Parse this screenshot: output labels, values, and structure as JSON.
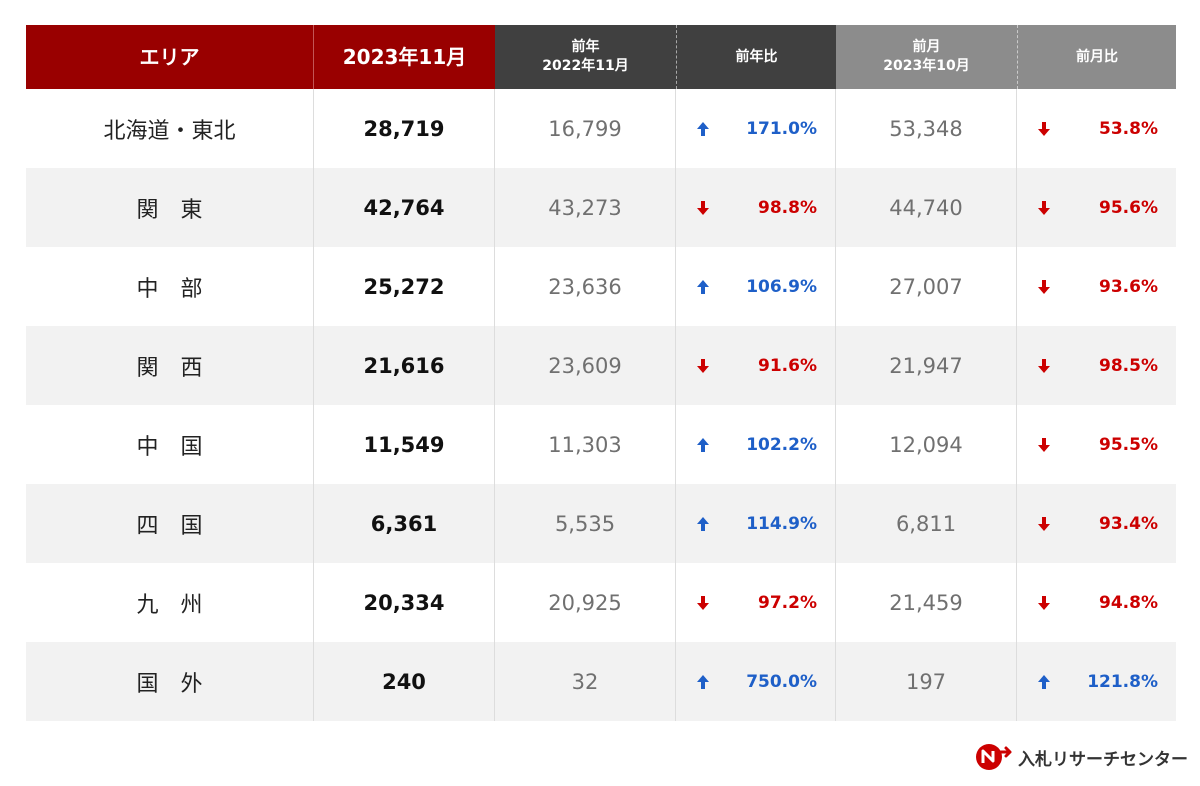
{
  "colors": {
    "header_red": "#990000",
    "header_dark": "#404040",
    "header_gray": "#8c8c8c",
    "up": "#1e5fc8",
    "down": "#cc0000"
  },
  "chart_data": {
    "type": "table",
    "columns": {
      "area": "エリア",
      "current": "2023年11月",
      "prev_year_line1": "前年",
      "prev_year_line2": "2022年11月",
      "prev_year_ratio": "前年比",
      "prev_month_line1": "前月",
      "prev_month_line2": "2023年10月",
      "prev_month_ratio": "前月比"
    },
    "rows": [
      {
        "area": "北海道・東北",
        "current": "28,719",
        "prev_year": "16,799",
        "yoy": "171.0%",
        "yoy_dir": "up",
        "prev_month": "53,348",
        "mom": "53.8%",
        "mom_dir": "down"
      },
      {
        "area": "関　東",
        "current": "42,764",
        "prev_year": "43,273",
        "yoy": "98.8%",
        "yoy_dir": "down",
        "prev_month": "44,740",
        "mom": "95.6%",
        "mom_dir": "down"
      },
      {
        "area": "中　部",
        "current": "25,272",
        "prev_year": "23,636",
        "yoy": "106.9%",
        "yoy_dir": "up",
        "prev_month": "27,007",
        "mom": "93.6%",
        "mom_dir": "down"
      },
      {
        "area": "関　西",
        "current": "21,616",
        "prev_year": "23,609",
        "yoy": "91.6%",
        "yoy_dir": "down",
        "prev_month": "21,947",
        "mom": "98.5%",
        "mom_dir": "down"
      },
      {
        "area": "中　国",
        "current": "11,549",
        "prev_year": "11,303",
        "yoy": "102.2%",
        "yoy_dir": "up",
        "prev_month": "12,094",
        "mom": "95.5%",
        "mom_dir": "down"
      },
      {
        "area": "四　国",
        "current": "6,361",
        "prev_year": "5,535",
        "yoy": "114.9%",
        "yoy_dir": "up",
        "prev_month": "6,811",
        "mom": "93.4%",
        "mom_dir": "down"
      },
      {
        "area": "九　州",
        "current": "20,334",
        "prev_year": "20,925",
        "yoy": "97.2%",
        "yoy_dir": "down",
        "prev_month": "21,459",
        "mom": "94.8%",
        "mom_dir": "down"
      },
      {
        "area": "国　外",
        "current": "240",
        "prev_year": "32",
        "yoy": "750.0%",
        "yoy_dir": "up",
        "prev_month": "197",
        "mom": "121.8%",
        "mom_dir": "up"
      }
    ]
  },
  "logo": {
    "text": "入札リサーチセンター",
    "icon": "n-arrow-logo-icon"
  }
}
